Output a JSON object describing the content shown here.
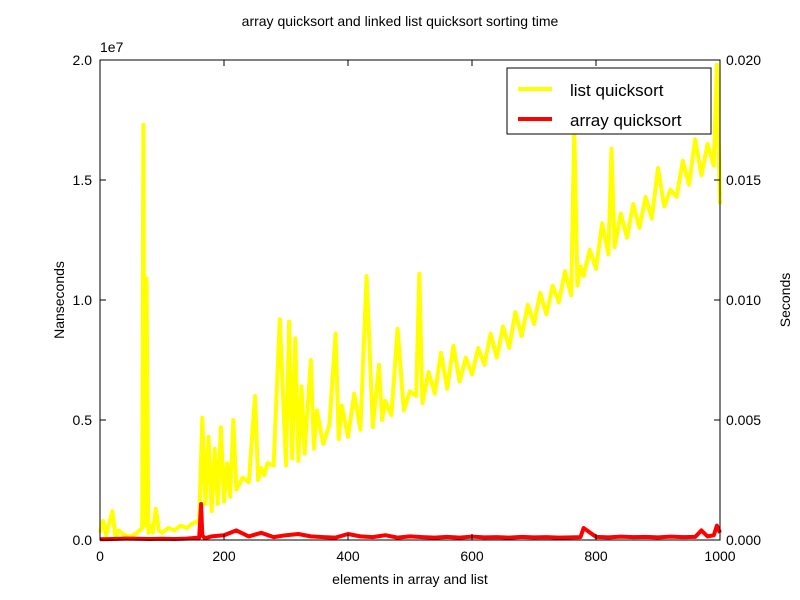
{
  "chart_data": {
    "type": "line",
    "title": "array quicksort and linked list quicksort sorting time",
    "xlabel": "elements in array and list",
    "ylabel": "Nanseconds",
    "y2label": "Seconds",
    "y_offset_text": "1e7",
    "xlim": [
      0,
      1000
    ],
    "ylim": [
      0,
      20000000
    ],
    "y2lim": [
      0,
      0.02
    ],
    "x_ticks": [
      "0",
      "200",
      "400",
      "600",
      "800",
      "1000"
    ],
    "y_ticks": [
      "0.0",
      "0.5",
      "1.0",
      "1.5",
      "2.0"
    ],
    "y2_ticks": [
      "0.000",
      "0.005",
      "0.010",
      "0.015",
      "0.020"
    ],
    "legend_placement": "top-right",
    "grid": false,
    "series": [
      {
        "name": "list quicksort",
        "color": "#ffff00",
        "x": [
          0,
          5,
          10,
          20,
          25,
          30,
          40,
          50,
          60,
          68,
          70,
          72,
          75,
          78,
          80,
          82,
          85,
          90,
          95,
          100,
          110,
          120,
          130,
          140,
          150,
          160,
          165,
          170,
          175,
          180,
          185,
          190,
          195,
          200,
          205,
          210,
          215,
          220,
          230,
          240,
          250,
          255,
          260,
          265,
          270,
          280,
          290,
          300,
          305,
          310,
          315,
          320,
          325,
          330,
          340,
          345,
          350,
          360,
          370,
          380,
          385,
          390,
          400,
          410,
          420,
          430,
          440,
          450,
          455,
          460,
          470,
          480,
          490,
          500,
          510,
          515,
          520,
          530,
          540,
          550,
          560,
          570,
          580,
          590,
          600,
          610,
          620,
          630,
          640,
          650,
          660,
          670,
          680,
          690,
          700,
          710,
          720,
          730,
          740,
          750,
          760,
          765,
          770,
          775,
          780,
          790,
          800,
          810,
          820,
          825,
          830,
          840,
          850,
          860,
          870,
          880,
          890,
          900,
          910,
          920,
          930,
          940,
          950,
          960,
          970,
          980,
          990,
          995,
          1000
        ],
        "values": [
          300000,
          800000,
          200000,
          1200000,
          100000,
          400000,
          200000,
          150000,
          300000,
          500000,
          17300000,
          600000,
          10900000,
          300000,
          400000,
          600000,
          300000,
          1300000,
          400000,
          300000,
          500000,
          400000,
          600000,
          500000,
          700000,
          800000,
          5100000,
          1500000,
          4300000,
          1200000,
          3800000,
          1500000,
          4700000,
          1600000,
          3200000,
          1800000,
          5000000,
          2100000,
          2600000,
          2400000,
          6000000,
          2500000,
          3000000,
          2700000,
          3200000,
          3100000,
          9200000,
          3100000,
          9100000,
          3400000,
          8400000,
          3300000,
          6400000,
          3600000,
          7500000,
          3800000,
          5400000,
          4000000,
          4800000,
          8600000,
          4200000,
          5600000,
          4300000,
          6100000,
          4600000,
          11000000,
          4700000,
          7300000,
          5000000,
          5800000,
          5200000,
          8800000,
          5400000,
          6200000,
          6000000,
          11100000,
          5700000,
          7000000,
          6100000,
          7800000,
          6300000,
          8100000,
          6600000,
          7600000,
          6900000,
          8000000,
          7300000,
          8600000,
          7600000,
          8900000,
          8000000,
          9500000,
          8500000,
          9800000,
          9000000,
          10300000,
          9400000,
          10600000,
          9900000,
          11200000,
          10200000,
          17100000,
          10600000,
          11400000,
          11000000,
          12100000,
          11300000,
          13200000,
          11900000,
          16300000,
          12200000,
          13600000,
          12600000,
          14000000,
          13000000,
          14300000,
          13400000,
          15500000,
          13900000,
          14600000,
          14300000,
          15800000,
          14800000,
          16700000,
          15200000,
          16500000,
          15600000,
          19800000,
          14000000
        ]
      },
      {
        "name": "array quicksort",
        "color": "#ff0000",
        "x": [
          0,
          20,
          40,
          60,
          80,
          100,
          120,
          140,
          160,
          163,
          165,
          168,
          170,
          180,
          200,
          220,
          240,
          260,
          280,
          300,
          320,
          340,
          360,
          380,
          400,
          420,
          440,
          460,
          480,
          500,
          520,
          540,
          560,
          580,
          600,
          620,
          640,
          660,
          680,
          700,
          720,
          740,
          760,
          775,
          780,
          800,
          820,
          840,
          860,
          880,
          900,
          920,
          940,
          960,
          970,
          980,
          990,
          995,
          1000
        ],
        "values": [
          30000,
          40000,
          60000,
          50000,
          40000,
          50000,
          40000,
          60000,
          100000,
          1500000,
          200000,
          100000,
          80000,
          150000,
          200000,
          400000,
          150000,
          300000,
          120000,
          200000,
          250000,
          150000,
          120000,
          100000,
          250000,
          150000,
          120000,
          200000,
          100000,
          150000,
          120000,
          100000,
          130000,
          100000,
          140000,
          110000,
          120000,
          100000,
          130000,
          110000,
          120000,
          100000,
          110000,
          120000,
          500000,
          130000,
          110000,
          140000,
          120000,
          130000,
          110000,
          140000,
          120000,
          130000,
          400000,
          150000,
          200000,
          600000,
          300000
        ]
      }
    ]
  }
}
